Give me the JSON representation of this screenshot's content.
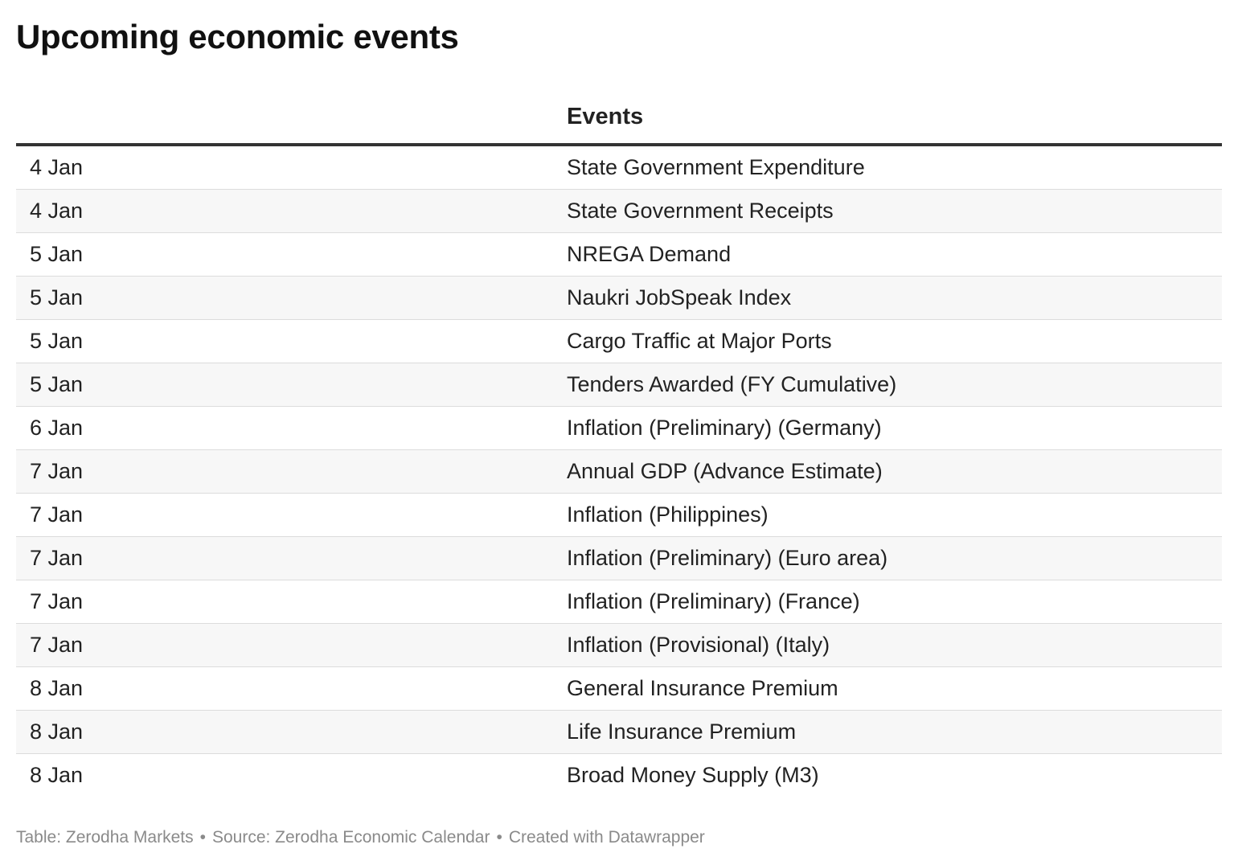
{
  "title": "Upcoming economic events",
  "table": {
    "headers": [
      "",
      "Events"
    ],
    "rows": [
      {
        "date": "4 Jan",
        "event": "State Government Expenditure"
      },
      {
        "date": "4 Jan",
        "event": "State Government Receipts"
      },
      {
        "date": "5 Jan",
        "event": "NREGA Demand"
      },
      {
        "date": "5 Jan",
        "event": "Naukri JobSpeak Index"
      },
      {
        "date": "5 Jan",
        "event": "Cargo Traffic at Major Ports"
      },
      {
        "date": "5 Jan",
        "event": "Tenders Awarded (FY Cumulative)"
      },
      {
        "date": "6 Jan",
        "event": "Inflation (Preliminary) (Germany)"
      },
      {
        "date": "7 Jan",
        "event": "Annual GDP (Advance Estimate)"
      },
      {
        "date": "7 Jan",
        "event": "Inflation (Philippines)"
      },
      {
        "date": "7 Jan",
        "event": "Inflation (Preliminary) (Euro area)"
      },
      {
        "date": "7 Jan",
        "event": "Inflation (Preliminary) (France)"
      },
      {
        "date": "7 Jan",
        "event": "Inflation (Provisional) (Italy)"
      },
      {
        "date": "8 Jan",
        "event": "General Insurance Premium"
      },
      {
        "date": "8 Jan",
        "event": "Life Insurance Premium"
      },
      {
        "date": "8 Jan",
        "event": "Broad Money Supply (M3)"
      }
    ]
  },
  "footer": {
    "table_credit": "Table: Zerodha Markets",
    "source": "Source: Zerodha Economic Calendar",
    "created_with": "Created with Datawrapper",
    "separator": "•"
  },
  "colors": {
    "header_rule": "#333333",
    "row_stripe": "#f7f7f7",
    "row_divider": "#dcdcdc",
    "footer_text": "#8a8a8a"
  }
}
